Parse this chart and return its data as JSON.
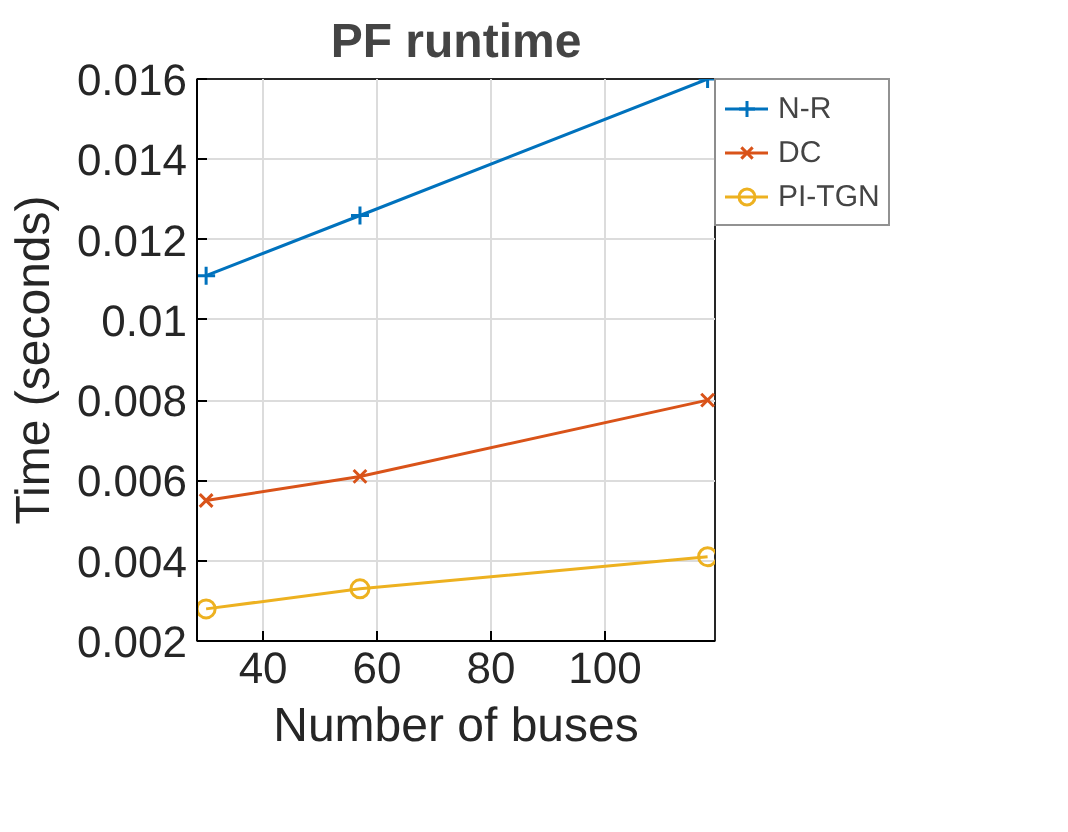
{
  "chart_data": {
    "type": "line",
    "title": "PF runtime",
    "xlabel": "Number of buses",
    "ylabel": "Time (seconds)",
    "x": [
      30,
      57,
      118
    ],
    "series": [
      {
        "name": "N-R",
        "color": "#0072bd",
        "marker": "cross",
        "values": [
          0.0111,
          0.0126,
          0.016
        ]
      },
      {
        "name": "DC",
        "color": "#d95319",
        "marker": "x",
        "values": [
          0.0055,
          0.0061,
          0.008
        ]
      },
      {
        "name": "PI-TGN",
        "color": "#edb120",
        "marker": "circle",
        "values": [
          0.0028,
          0.0033,
          0.0041
        ]
      }
    ],
    "xlim": [
      28.4,
      119.3
    ],
    "xticks": [
      40,
      60,
      80,
      100
    ],
    "ylim": [
      0.002,
      0.016
    ],
    "yticks": [
      0.002,
      0.004,
      0.006,
      0.008,
      {
        "value": 0.01,
        "label": "0.01"
      },
      0.012,
      0.014,
      0.016
    ],
    "grid": true,
    "legend": "top right",
    "line_style": "solid"
  }
}
